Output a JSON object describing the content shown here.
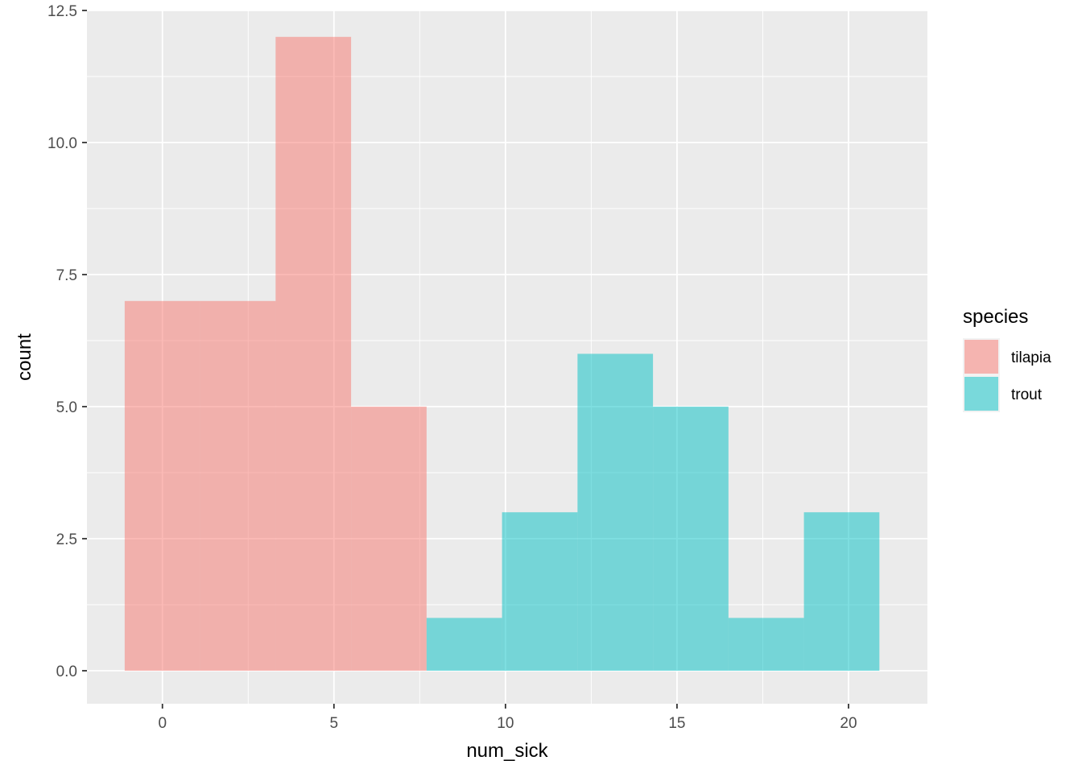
{
  "chart_data": {
    "type": "bar",
    "subtype": "histogram",
    "xlabel": "num_sick",
    "ylabel": "count",
    "xlim": [
      -2.2,
      22.3
    ],
    "ylim": [
      -0.625,
      12.5
    ],
    "x_ticks": [
      0,
      5,
      10,
      15,
      20
    ],
    "x_tick_labels": [
      "0",
      "5",
      "10",
      "15",
      "20"
    ],
    "y_ticks": [
      0,
      2.5,
      5,
      7.5,
      10,
      12.5
    ],
    "y_tick_labels": [
      "0.0",
      "2.5",
      "5.0",
      "7.5",
      "10.0",
      "12.5"
    ],
    "grid": true,
    "legend": {
      "title": "species",
      "position": "right",
      "entries": [
        {
          "label": "tilapia",
          "color": "#F8766D"
        },
        {
          "label": "trout",
          "color": "#00BFC4"
        }
      ]
    },
    "bin_width": 2.2,
    "series": [
      {
        "name": "tilapia",
        "color": "#F8766D",
        "bins": [
          {
            "x0": -1.1,
            "x1": 1.1,
            "count": 7
          },
          {
            "x0": 1.1,
            "x1": 3.3,
            "count": 7
          },
          {
            "x0": 3.3,
            "x1": 5.5,
            "count": 12
          },
          {
            "x0": 5.5,
            "x1": 7.7,
            "count": 5
          }
        ]
      },
      {
        "name": "trout",
        "color": "#00BFC4",
        "bins": [
          {
            "x0": 7.7,
            "x1": 9.9,
            "count": 1
          },
          {
            "x0": 9.9,
            "x1": 12.1,
            "count": 3
          },
          {
            "x0": 12.1,
            "x1": 14.3,
            "count": 6
          },
          {
            "x0": 14.3,
            "x1": 16.5,
            "count": 5
          },
          {
            "x0": 16.5,
            "x1": 18.7,
            "count": 1
          },
          {
            "x0": 18.7,
            "x1": 20.9,
            "count": 3
          }
        ]
      }
    ],
    "panel_background": "#EBEBEB",
    "grid_color": "#FFFFFF",
    "bar_opacity": 0.5
  }
}
